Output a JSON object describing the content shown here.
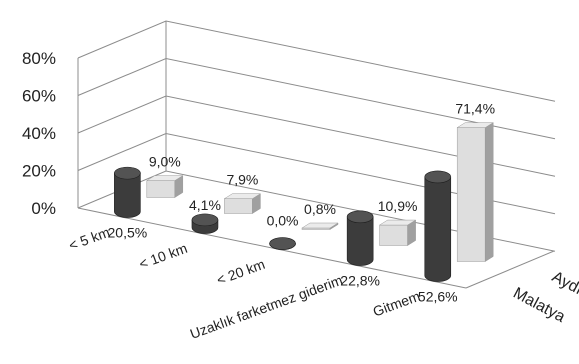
{
  "chart_data": {
    "type": "bar",
    "subtype": "3d-column-grouped",
    "categories": [
      "< 5 km",
      "< 10 km",
      "< 20 km",
      "Uzaklık farketmez giderim",
      "Gitmem"
    ],
    "series": [
      {
        "name": "Malatya",
        "shape": "cylinder",
        "color": "#3c3c3c",
        "values": [
          20.5,
          4.1,
          0.0,
          22.8,
          52.6
        ],
        "labels": [
          "20,5%",
          "4,1%",
          "0,0%",
          "22,8%",
          "52,6%"
        ]
      },
      {
        "name": "Aydın",
        "shape": "box",
        "color": "#dedede",
        "values": [
          9.0,
          7.9,
          0.8,
          10.9,
          71.4
        ],
        "labels": [
          "9,0%",
          "7,9%",
          "0,8%",
          "10,9%",
          "71,4%"
        ]
      }
    ],
    "ylim": [
      0,
      80
    ],
    "ytick_labels": [
      "0%",
      "20%",
      "40%",
      "60%",
      "80%"
    ],
    "grid": true,
    "title": "",
    "xlabel": "",
    "ylabel": ""
  }
}
